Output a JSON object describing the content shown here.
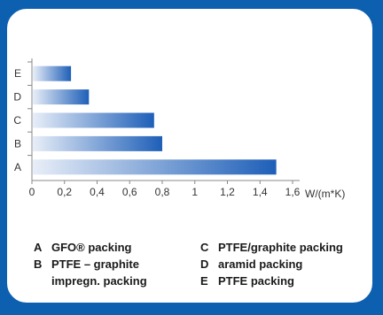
{
  "chart_data": {
    "type": "bar",
    "orientation": "horizontal",
    "categories": [
      "A",
      "B",
      "C",
      "D",
      "E"
    ],
    "values": [
      1.5,
      0.8,
      0.75,
      0.35,
      0.24
    ],
    "xlabel": "W/(m*K)",
    "xlim": [
      0,
      1.6
    ],
    "xticks": [
      "0",
      "0,2",
      "0,4",
      "0,6",
      "0,8",
      "1",
      "1,2",
      "1,4",
      "1,6"
    ],
    "grid": false,
    "bar_color": "#1e5fb8",
    "bar_fade_color": "#e8eef8"
  },
  "legend": [
    {
      "letter": "A",
      "text": "GFO® packing"
    },
    {
      "letter": "B",
      "text": "PTFE – graphite"
    },
    {
      "letter": "",
      "text": "impregn. packing"
    },
    {
      "letter": "C",
      "text": "PTFE/graphite packing"
    },
    {
      "letter": "D",
      "text": "aramid packing"
    },
    {
      "letter": "E",
      "text": "PTFE packing"
    }
  ],
  "colors": {
    "frame": "#0d5fb0",
    "background": "#ffffff"
  }
}
